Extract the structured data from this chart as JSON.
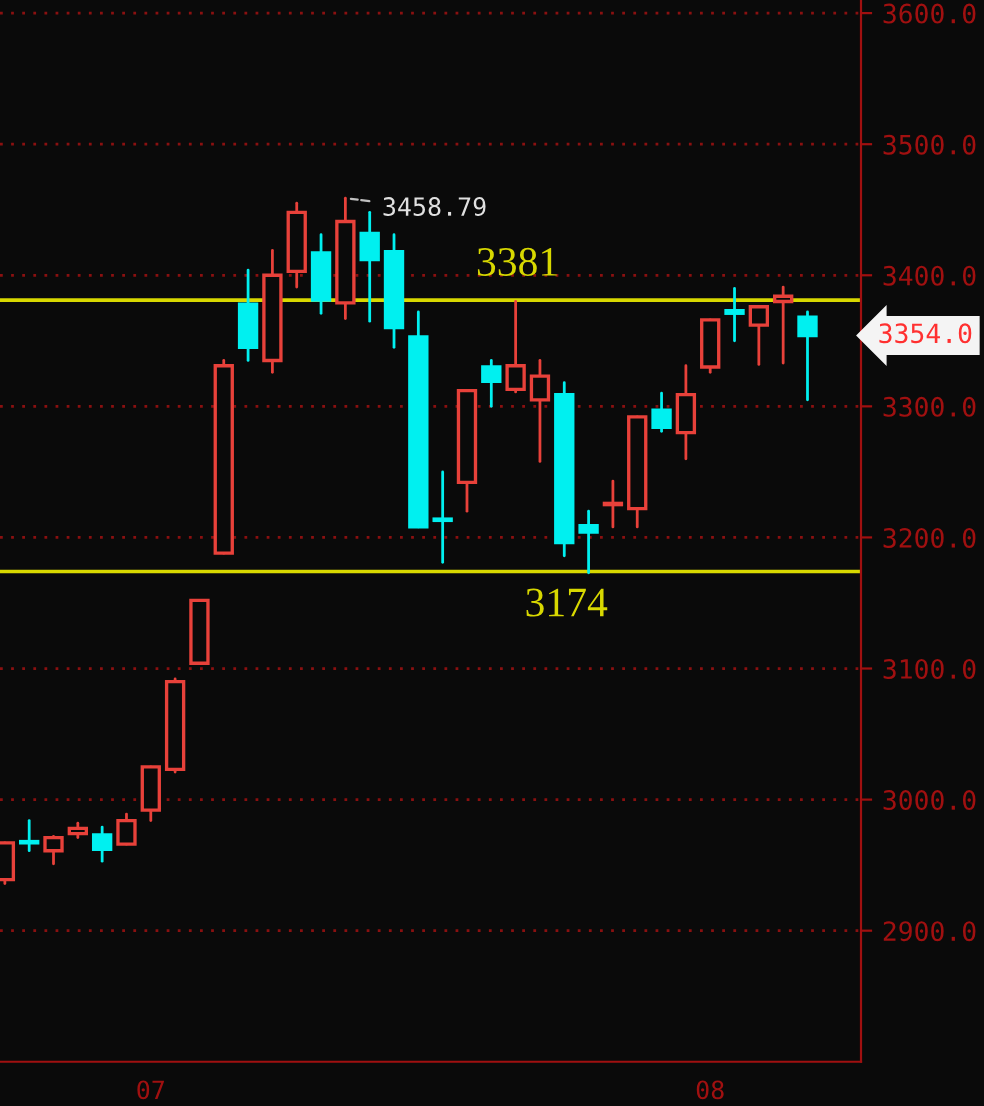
{
  "chart_data": {
    "type": "candlestick",
    "categories": [
      null,
      null,
      null,
      null,
      null,
      null,
      "07",
      null,
      null,
      null,
      null,
      null,
      null,
      null,
      null,
      null,
      null,
      null,
      null,
      null,
      null,
      null,
      null,
      null,
      null,
      null,
      null,
      null,
      null,
      "08",
      null,
      null,
      null,
      null
    ],
    "ohlc": [
      [
        2939,
        2967,
        2936,
        2967
      ],
      [
        2968,
        2984,
        2961,
        2967
      ],
      [
        2961,
        2972,
        2951,
        2971
      ],
      [
        2974,
        2982,
        2971,
        2978
      ],
      [
        2973,
        2979,
        2953,
        2962
      ],
      [
        2966,
        2989,
        2966,
        2984
      ],
      [
        2992,
        3025,
        2984,
        3025
      ],
      [
        3023,
        3092,
        3021,
        3090
      ],
      [
        3104,
        3152,
        3104,
        3152
      ],
      [
        3188,
        3335,
        3188,
        3331
      ],
      [
        3378,
        3404,
        3335,
        3345
      ],
      [
        3335,
        3419,
        3326,
        3400
      ],
      [
        3403,
        3455,
        3391,
        3448
      ],
      [
        3417,
        3431,
        3371,
        3381
      ],
      [
        3379,
        3458.79,
        3367,
        3441
      ],
      [
        3432,
        3448,
        3365,
        3412
      ],
      [
        3418,
        3431,
        3345,
        3360
      ],
      [
        3353,
        3372,
        3208,
        3208
      ],
      [
        3214,
        3250,
        3181,
        3213
      ],
      [
        3242,
        3312,
        3220,
        3312
      ],
      [
        3330,
        3335,
        3300,
        3319
      ],
      [
        3313,
        3380,
        3311,
        3331
      ],
      [
        3305,
        3335,
        3258,
        3323
      ],
      [
        3309,
        3318,
        3186,
        3196
      ],
      [
        3209,
        3220,
        3173,
        3204
      ],
      [
        3225,
        3243,
        3208,
        3226
      ],
      [
        3222,
        3292,
        3208,
        3292
      ],
      [
        3297,
        3310,
        3281,
        3284
      ],
      [
        3280,
        3331,
        3260,
        3309
      ],
      [
        3330,
        3366,
        3326,
        3366
      ],
      [
        3373,
        3390,
        3350,
        3371
      ],
      [
        3362,
        3376,
        3332,
        3376
      ],
      [
        3380,
        3391,
        3333,
        3384
      ],
      [
        3368,
        3372,
        3305,
        3354
      ]
    ],
    "ylim": [
      2800,
      3610
    ],
    "yticks": [
      {
        "value": 2900,
        "label": "2900.0"
      },
      {
        "value": 3000,
        "label": "3000.0"
      },
      {
        "value": 3100,
        "label": "3100.0"
      },
      {
        "value": 3200,
        "label": "3200.0"
      },
      {
        "value": 3300,
        "label": "3300.0"
      },
      {
        "value": 3400,
        "label": "3400.0"
      },
      {
        "value": 3500,
        "label": "3500.0"
      },
      {
        "value": 3600,
        "label": "3600.0"
      }
    ],
    "grid": "y",
    "ref_lines": [
      {
        "axis": "y",
        "value": 3381,
        "label": "3381",
        "color": "#d8d800"
      },
      {
        "axis": "y",
        "value": 3174,
        "label": "3174",
        "color": "#d8d800"
      }
    ],
    "annotations": [
      "3458.79",
      "3354.0"
    ]
  }
}
